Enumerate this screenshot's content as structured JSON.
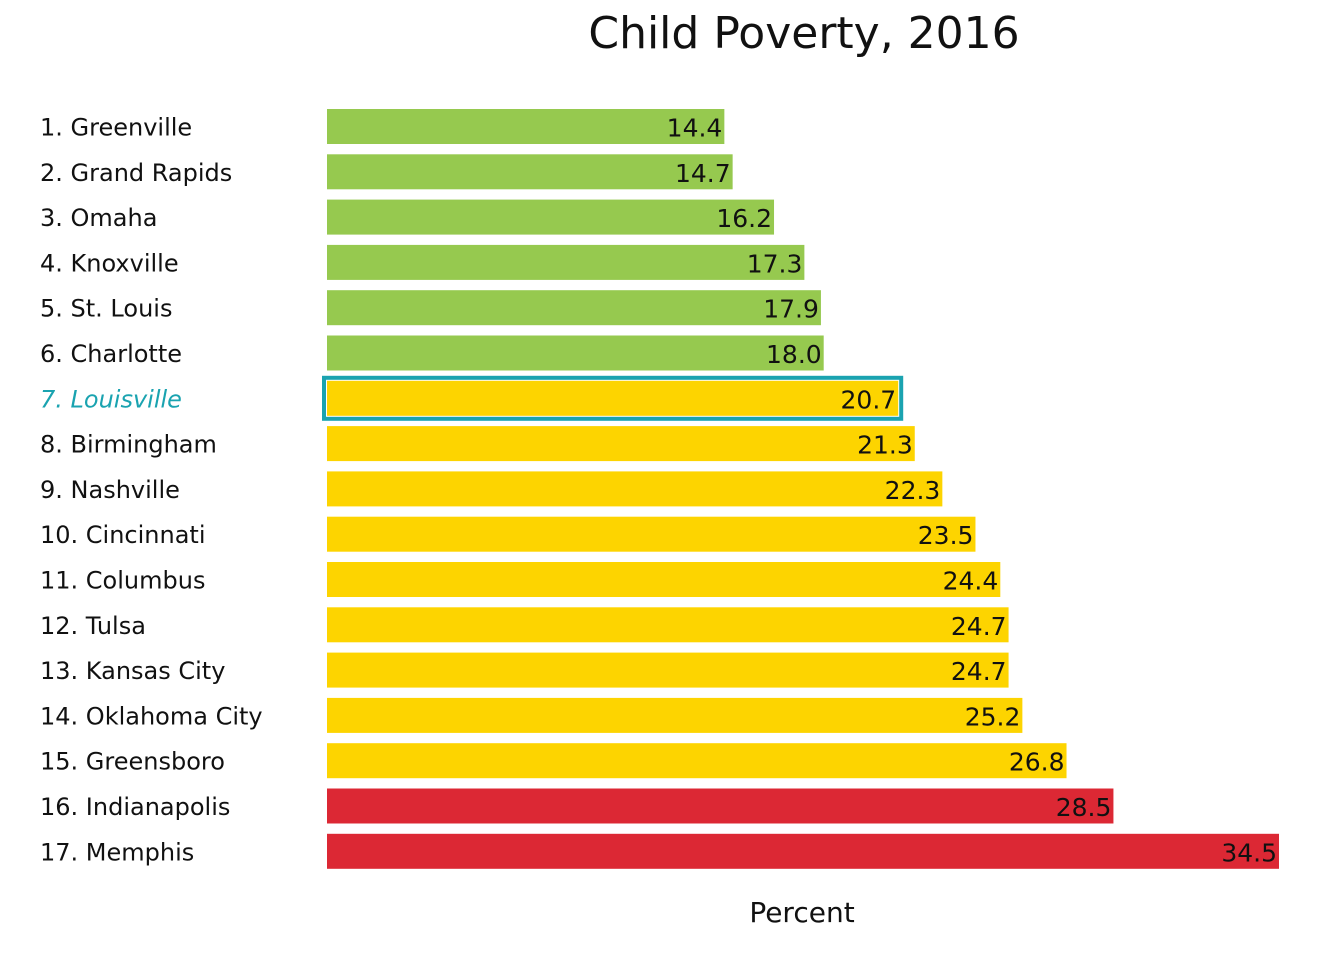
{
  "chart_data": {
    "type": "bar",
    "orientation": "horizontal",
    "title": "Child Poverty, 2016",
    "xlabel": "Percent",
    "ylabel": "",
    "xlim": [
      0,
      34.5
    ],
    "grid": false,
    "legend": "none",
    "categories": [
      "1. Greenville",
      "2. Grand Rapids",
      "3. Omaha",
      "4. Knoxville",
      "5. St. Louis",
      "6. Charlotte",
      "7. Louisville",
      "8. Birmingham",
      "9. Nashville",
      "10. Cincinnati",
      "11. Columbus",
      "12. Tulsa",
      "13. Kansas City",
      "14. Oklahoma City",
      "15. Greensboro",
      "16. Indianapolis",
      "17. Memphis"
    ],
    "values": [
      14.4,
      14.7,
      16.2,
      17.3,
      17.9,
      18.0,
      20.7,
      21.3,
      22.3,
      23.5,
      24.4,
      24.7,
      24.7,
      25.2,
      26.8,
      28.5,
      34.5
    ],
    "value_labels": [
      "14.4",
      "14.7",
      "16.2",
      "17.3",
      "17.9",
      "18.0",
      "20.7",
      "21.3",
      "22.3",
      "23.5",
      "24.4",
      "24.7",
      "24.7",
      "25.2",
      "26.8",
      "28.5",
      "34.5"
    ],
    "bar_groups": [
      "green",
      "green",
      "green",
      "green",
      "green",
      "green",
      "yellow",
      "yellow",
      "yellow",
      "yellow",
      "yellow",
      "yellow",
      "yellow",
      "yellow",
      "yellow",
      "red",
      "red"
    ],
    "highlight_index": 6,
    "colors": {
      "green": "#96c94f",
      "yellow": "#fdd400",
      "red": "#dc2834",
      "highlight": "#1aa3b0",
      "text": "#111111"
    }
  }
}
